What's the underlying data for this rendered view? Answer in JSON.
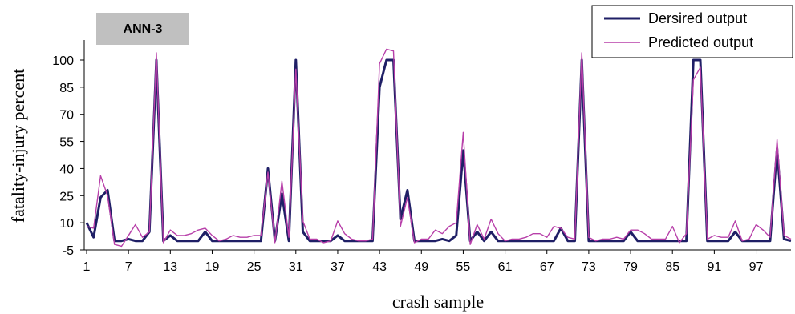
{
  "chart_data": {
    "type": "line",
    "badge": "ANN-3",
    "xlabel": "crash sample",
    "ylabel": "fatality-injury percent",
    "ylim": [
      -5,
      115
    ],
    "yticks": [
      -5,
      10,
      25,
      40,
      55,
      70,
      85,
      100
    ],
    "xlim": [
      1,
      100
    ],
    "xticks": [
      1,
      7,
      13,
      19,
      25,
      31,
      37,
      43,
      49,
      55,
      61,
      67,
      73,
      79,
      85,
      91,
      97
    ],
    "grid": false,
    "legend_position": "top-right",
    "series": [
      {
        "name": "Dersired output",
        "color": "#1f1f66",
        "values": [
          10,
          2,
          24,
          28,
          0,
          0,
          1,
          0,
          0,
          5,
          100,
          0,
          3,
          0,
          0,
          0,
          0,
          5,
          0,
          0,
          0,
          0,
          0,
          0,
          0,
          0,
          40,
          0,
          26,
          0,
          100,
          5,
          0,
          0,
          0,
          0,
          3,
          0,
          0,
          0,
          0,
          0,
          85,
          100,
          100,
          12,
          28,
          0,
          0,
          0,
          0,
          1,
          0,
          3,
          50,
          0,
          5,
          0,
          5,
          0,
          0,
          0,
          0,
          0,
          0,
          0,
          0,
          0,
          7,
          0,
          0,
          100,
          0,
          0,
          0,
          0,
          0,
          0,
          5,
          0,
          0,
          0,
          0,
          0,
          0,
          0,
          0,
          100,
          100,
          0,
          0,
          0,
          0,
          5,
          0,
          0,
          0,
          0,
          0,
          51,
          1,
          0
        ]
      },
      {
        "name": "Predicted output",
        "color": "#b73fa9",
        "values": [
          8,
          7,
          36,
          25,
          -2,
          -3,
          3,
          9,
          2,
          5,
          104,
          -1,
          6,
          3,
          3,
          4,
          6,
          7,
          3,
          0,
          1,
          3,
          2,
          2,
          3,
          3,
          38,
          -1,
          33,
          2,
          95,
          11,
          1,
          1,
          -1,
          0,
          11,
          4,
          1,
          0,
          0,
          1,
          98,
          106,
          105,
          8,
          24,
          -1,
          1,
          1,
          6,
          4,
          8,
          10,
          60,
          -2,
          9,
          1,
          12,
          4,
          0,
          1,
          1,
          2,
          4,
          4,
          2,
          8,
          7,
          2,
          1,
          104,
          2,
          0,
          1,
          1,
          2,
          1,
          6,
          6,
          4,
          1,
          1,
          1,
          8,
          -1,
          4,
          89,
          96,
          1,
          3,
          2,
          2,
          11,
          0,
          1,
          9,
          6,
          2,
          56,
          3,
          1
        ]
      }
    ]
  }
}
